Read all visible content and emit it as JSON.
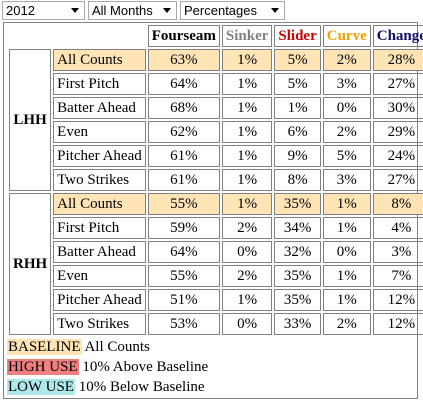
{
  "filters": [
    "2012",
    "All Months",
    "Percentages"
  ],
  "table": {
    "columns": [
      "Fourseam",
      "Sinker",
      "Slider",
      "Curve",
      "Change"
    ],
    "groups": [
      {
        "label": "LHH",
        "rows": [
          {
            "situation": "All Counts",
            "values": [
              "63%",
              "1%",
              "5%",
              "2%",
              "28%"
            ]
          },
          {
            "situation": "First Pitch",
            "values": [
              "64%",
              "1%",
              "5%",
              "3%",
              "27%"
            ]
          },
          {
            "situation": "Batter Ahead",
            "values": [
              "68%",
              "1%",
              "1%",
              "0%",
              "30%"
            ]
          },
          {
            "situation": "Even",
            "values": [
              "62%",
              "1%",
              "6%",
              "2%",
              "29%"
            ]
          },
          {
            "situation": "Pitcher Ahead",
            "values": [
              "61%",
              "1%",
              "9%",
              "5%",
              "24%"
            ]
          },
          {
            "situation": "Two Strikes",
            "values": [
              "61%",
              "1%",
              "8%",
              "3%",
              "27%"
            ]
          }
        ]
      },
      {
        "label": "RHH",
        "rows": [
          {
            "situation": "All Counts",
            "values": [
              "55%",
              "1%",
              "35%",
              "1%",
              "8%"
            ]
          },
          {
            "situation": "First Pitch",
            "values": [
              "59%",
              "2%",
              "34%",
              "1%",
              "4%"
            ]
          },
          {
            "situation": "Batter Ahead",
            "values": [
              "64%",
              "0%",
              "32%",
              "0%",
              "3%"
            ]
          },
          {
            "situation": "Even",
            "values": [
              "55%",
              "2%",
              "35%",
              "1%",
              "7%"
            ]
          },
          {
            "situation": "Pitcher Ahead",
            "values": [
              "51%",
              "1%",
              "35%",
              "1%",
              "12%"
            ]
          },
          {
            "situation": "Two Strikes",
            "values": [
              "53%",
              "0%",
              "33%",
              "2%",
              "12%"
            ]
          }
        ]
      }
    ]
  },
  "legend": [
    {
      "key": "BASELINE",
      "text": "All Counts"
    },
    {
      "key": "HIGH USE",
      "text": "10% Above Baseline"
    },
    {
      "key": "LOW USE",
      "text": "10% Below Baseline"
    }
  ]
}
